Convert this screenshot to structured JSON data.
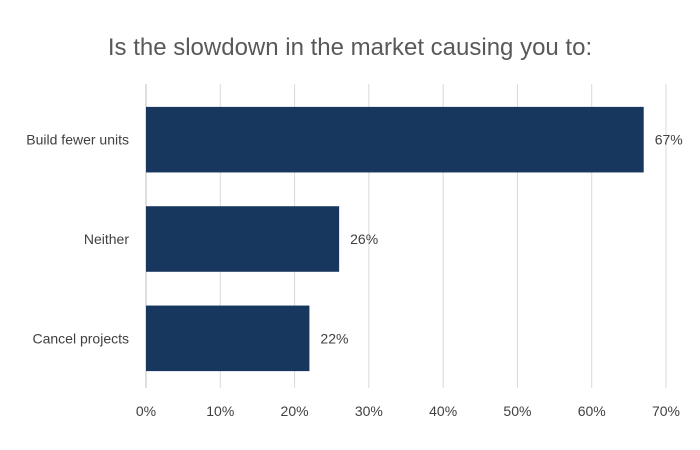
{
  "chart_data": {
    "type": "bar",
    "orientation": "horizontal",
    "title": "Is the slowdown in the market causing you to:",
    "categories": [
      "Build fewer units",
      "Neither",
      "Cancel projects"
    ],
    "values": [
      0.67,
      0.26,
      0.22
    ],
    "data_labels": [
      "67%",
      "26%",
      "22%"
    ],
    "xlim": [
      0,
      0.7
    ],
    "x_ticks": [
      0,
      0.1,
      0.2,
      0.3,
      0.4,
      0.5,
      0.6,
      0.7
    ],
    "x_tick_labels": [
      "0%",
      "10%",
      "20%",
      "30%",
      "40%",
      "50%",
      "60%",
      "70%"
    ],
    "xlabel": "",
    "ylabel": "",
    "grid": "vertical",
    "legend": "none",
    "bar_color": "#17375e",
    "grid_color": "#d9d9d9"
  }
}
